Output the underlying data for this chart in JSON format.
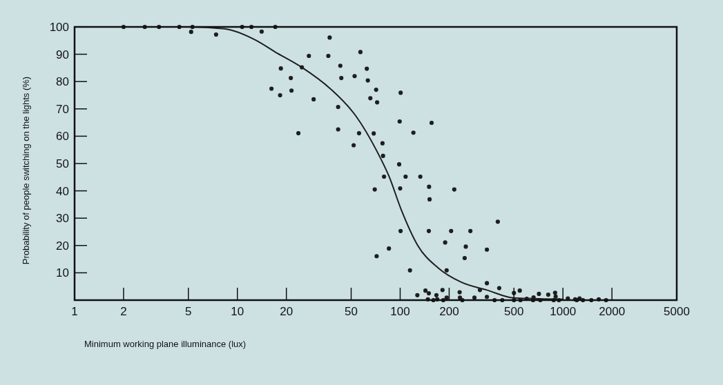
{
  "chart_data": {
    "type": "scatter",
    "xlabel": "Minimum working plane illuminance (lux)",
    "ylabel": "Probability of people switching on the lights (%)",
    "log": "x",
    "xlim": [
      1,
      5000
    ],
    "xticks": [
      1,
      2,
      5,
      10,
      20,
      50,
      100,
      200,
      500,
      1000,
      2000,
      5000
    ],
    "ylim": [
      0,
      100
    ],
    "yticks": [
      {
        "value": 0,
        "label": null
      },
      10,
      20,
      30,
      40,
      50,
      60,
      70,
      80,
      90,
      100
    ],
    "grid": false,
    "series": [
      {
        "color": "#1e1e1e",
        "marker": "circle",
        "x": [
          2,
          2.7,
          3.3,
          4.4,
          5.3,
          5.2,
          7.4,
          10.7,
          12.2,
          14.1,
          17.1,
          18.5,
          16.2,
          18.3,
          24.9,
          21.3,
          21.5,
          27.5,
          23.7,
          29.4,
          36.9,
          36.2,
          42.9,
          43.5,
          41.6,
          41.6,
          57,
          52.5,
          62.4,
          63.3,
          55.9,
          51.8,
          71.2,
          65.6,
          72.2,
          68.8,
          77.9,
          78.5,
          79.6,
          69.8,
          85.3,
          71.7,
          100.7,
          99.3,
          98.6,
          108,
          100,
          100.6,
          114.9,
          120.6,
          133,
          150.5,
          151.6,
          156,
          150,
          215,
          205.6,
          270,
          189,
          253,
          249,
          341,
          193,
          341,
          309,
          127.5,
          143,
          150,
          148,
          160,
          167,
          182,
          169,
          184,
          193,
          232,
          233,
          241,
          286,
          341,
          398,
          406,
          500,
          543,
          380,
          424,
          500,
          548,
          599,
          660,
          655,
          712,
          726,
          812,
          895,
          902,
          877,
          945,
          1072,
          1189,
          1265,
          1217,
          1327,
          1494,
          1659,
          1840
        ],
        "values": [
          100,
          100,
          100,
          100,
          100,
          98.2,
          97.2,
          100,
          100,
          98.3,
          100,
          84.8,
          77.4,
          75,
          85.2,
          81.3,
          76.7,
          89.4,
          61.1,
          73.5,
          96.1,
          89.4,
          85.8,
          81.3,
          70.7,
          62.5,
          90.8,
          82,
          84.7,
          80.4,
          61.1,
          56.7,
          77,
          73.9,
          72.4,
          61,
          57.4,
          52.8,
          45.2,
          40.5,
          18.9,
          16.1,
          75.9,
          65.4,
          49.7,
          45.2,
          40.9,
          25.3,
          10.9,
          61.3,
          45.2,
          41.5,
          36.9,
          64.9,
          25.3,
          40.5,
          25.3,
          25.3,
          21.1,
          19.6,
          15.4,
          18.5,
          10.9,
          6.2,
          3.7,
          1.8,
          3.5,
          2.5,
          0.3,
          0,
          1.8,
          3.7,
          0.3,
          0,
          0.9,
          2.9,
          0.9,
          0,
          0.9,
          1.2,
          28.7,
          4.4,
          2.6,
          3.5,
          0,
          0,
          0,
          0,
          0.5,
          1,
          0,
          2.3,
          0,
          2,
          2.7,
          1.3,
          0,
          0,
          0.6,
          0.3,
          0.6,
          0,
          0,
          0,
          0.3,
          0
        ]
      },
      {
        "type": "line",
        "color": "#1e1e1e",
        "marker": "none",
        "line_style": "solid",
        "x": [
          1,
          5,
          8.35,
          13,
          17,
          24.9,
          37.2,
          53.6,
          71.7,
          85.3,
          102,
          128,
          172,
          237,
          341,
          500,
          1000
        ],
        "values": [
          100,
          100,
          99.3,
          95.1,
          90.9,
          85.2,
          77.4,
          67.3,
          54.7,
          45.4,
          32.8,
          20.1,
          11.7,
          6.6,
          3.7,
          0.8,
          0.3
        ]
      }
    ]
  }
}
